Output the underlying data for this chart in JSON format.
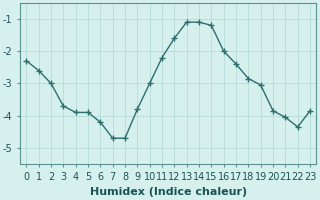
{
  "x": [
    0,
    1,
    2,
    3,
    4,
    5,
    6,
    7,
    8,
    9,
    10,
    11,
    12,
    13,
    14,
    15,
    16,
    17,
    18,
    19,
    20,
    21,
    22,
    23
  ],
  "y": [
    -2.3,
    -2.6,
    -3.0,
    -3.7,
    -3.9,
    -3.9,
    -4.2,
    -4.7,
    -4.7,
    -3.8,
    -3.0,
    -2.2,
    -1.6,
    -1.1,
    -1.1,
    -1.2,
    -2.0,
    -2.4,
    -2.85,
    -3.05,
    -3.85,
    -4.05,
    -4.35,
    -3.85
  ],
  "line_color": "#2d6e6e",
  "marker": "+",
  "marker_size": 4,
  "marker_lw": 1.0,
  "bg_color": "#d6f0ee",
  "grid_color": "#b8dbd8",
  "xlabel": "Humidex (Indice chaleur)",
  "xlabel_fontsize": 8,
  "tick_fontsize": 7,
  "xlabel_color": "#1a5555",
  "tick_color": "#1a5555",
  "line_color_hex": "#2d6e6e",
  "xlim": [
    -0.5,
    23.5
  ],
  "ylim": [
    -5.5,
    -0.5
  ],
  "yticks": [
    -5,
    -4,
    -3,
    -2,
    -1
  ],
  "xticks": [
    0,
    1,
    2,
    3,
    4,
    5,
    6,
    7,
    8,
    9,
    10,
    11,
    12,
    13,
    14,
    15,
    16,
    17,
    18,
    19,
    20,
    21,
    22,
    23
  ]
}
